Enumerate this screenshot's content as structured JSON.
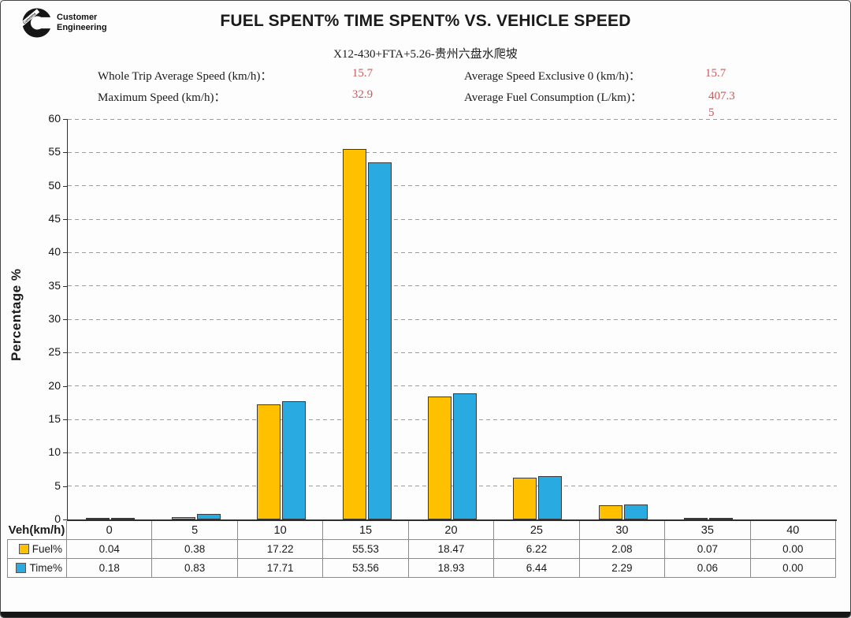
{
  "logo": {
    "brand": "Cummins",
    "line1": "Customer",
    "line2": "Engineering"
  },
  "title": "FUEL SPENT% TIME SPENT% VS. VEHICLE SPEED",
  "subtitle": "X12-430+FTA+5.26-贵州六盘水爬坡",
  "stats": {
    "rows": [
      {
        "label": "Whole Trip Average Speed (km/h)：",
        "value": "15.7"
      },
      {
        "label": "Maximum Speed (km/h)：",
        "value": "32.9"
      },
      {
        "label": "Average Speed Exclusive 0 (km/h)：",
        "value": "15.7"
      },
      {
        "label": "Average Fuel Consumption (L/km)：",
        "value": "407.35"
      }
    ]
  },
  "colors": {
    "fuel": "#FFC000",
    "time": "#29ABE2",
    "stat_value_red": "#cf5858",
    "gridline": "#9b9b9b",
    "bar_border": "#3a3a3a"
  },
  "chart_data": {
    "type": "bar",
    "title": "FUEL SPENT% TIME SPENT% VS. VEHICLE SPEED",
    "xlabel": "Veh(km/h)",
    "ylabel": "Percentage %",
    "ylim": [
      0,
      60
    ],
    "ytick_step": 5,
    "grid": "horizontal-dashed",
    "legend_position": "table-row-headers",
    "categories": [
      0,
      5,
      10,
      15,
      20,
      25,
      30,
      35,
      40
    ],
    "series": [
      {
        "name": "Fuel%",
        "color": "#FFC000",
        "values": [
          0.04,
          0.38,
          17.22,
          55.53,
          18.47,
          6.22,
          2.08,
          0.07,
          0.0
        ]
      },
      {
        "name": "Time%",
        "color": "#29ABE2",
        "values": [
          0.18,
          0.83,
          17.71,
          53.56,
          18.93,
          6.44,
          2.29,
          0.06,
          0.0
        ]
      }
    ]
  }
}
